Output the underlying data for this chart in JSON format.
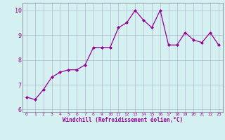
{
  "x": [
    0,
    1,
    2,
    3,
    4,
    5,
    6,
    7,
    8,
    9,
    10,
    11,
    12,
    13,
    14,
    15,
    16,
    17,
    18,
    19,
    20,
    21,
    22,
    23
  ],
  "y": [
    6.5,
    6.4,
    6.8,
    7.3,
    7.5,
    7.6,
    7.6,
    7.8,
    8.5,
    8.5,
    8.5,
    9.3,
    9.5,
    10.0,
    9.6,
    9.3,
    10.0,
    8.6,
    8.6,
    9.1,
    8.8,
    8.7,
    9.1,
    8.6
  ],
  "line_color": "#990099",
  "marker_color": "#990099",
  "bg_color": "#d4f0f0",
  "grid_color": "#aaaacc",
  "xlabel": "Windchill (Refroidissement éolien,°C)",
  "xlabel_color": "#990099",
  "tick_color": "#990099",
  "spine_color": "#888899",
  "ylim": [
    5.9,
    10.3
  ],
  "xlim": [
    -0.5,
    23.5
  ],
  "yticks": [
    6,
    7,
    8,
    9,
    10
  ],
  "xticks": [
    0,
    1,
    2,
    3,
    4,
    5,
    6,
    7,
    8,
    9,
    10,
    11,
    12,
    13,
    14,
    15,
    16,
    17,
    18,
    19,
    20,
    21,
    22,
    23
  ]
}
